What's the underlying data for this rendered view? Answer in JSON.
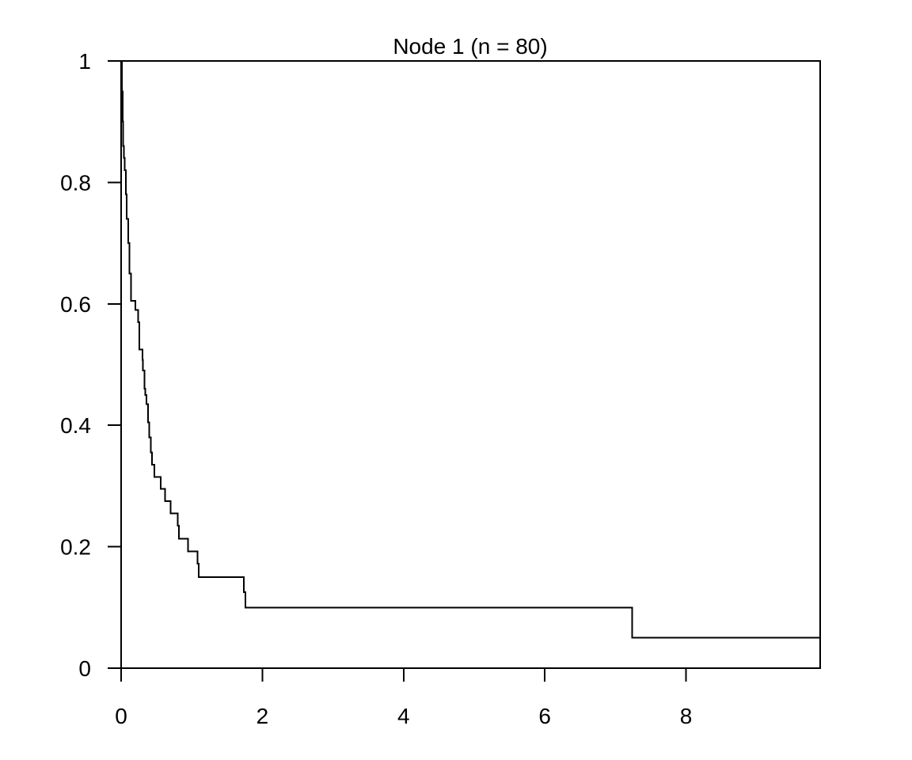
{
  "chart_data": {
    "type": "line",
    "step": true,
    "title": "Node 1 (n = 80)",
    "xlabel": "",
    "ylabel": "",
    "xlim": [
      0,
      9.9
    ],
    "ylim": [
      0,
      1
    ],
    "x_ticks": [
      0,
      2,
      4,
      6,
      8
    ],
    "x_tick_labels": [
      "0",
      "2",
      "4",
      "6",
      "8"
    ],
    "y_ticks": [
      0,
      0.2,
      0.4,
      0.6,
      0.8,
      1
    ],
    "y_tick_labels": [
      "0",
      "0.2",
      "0.4",
      "0.6",
      "0.8",
      "1"
    ],
    "grid": false,
    "series": [
      {
        "x": [
          0,
          0.01,
          0.02,
          0.03,
          0.04,
          0.05,
          0.07,
          0.08,
          0.1,
          0.12,
          0.14,
          0.16,
          0.2,
          0.24,
          0.26,
          0.28,
          0.3,
          0.31,
          0.33,
          0.34,
          0.36,
          0.38,
          0.4,
          0.42,
          0.44,
          0.47,
          0.56,
          0.62,
          0.7,
          0.8,
          0.82,
          0.95,
          1.08,
          1.1,
          1.74,
          1.76,
          7.24
        ],
        "y": [
          1.0,
          0.95,
          0.9,
          0.86,
          0.84,
          0.82,
          0.78,
          0.74,
          0.7,
          0.65,
          0.605,
          0.605,
          0.59,
          0.57,
          0.525,
          0.525,
          0.508,
          0.49,
          0.46,
          0.45,
          0.435,
          0.405,
          0.38,
          0.355,
          0.335,
          0.315,
          0.295,
          0.275,
          0.255,
          0.235,
          0.213,
          0.192,
          0.172,
          0.15,
          0.125,
          0.1,
          0.05
        ]
      }
    ]
  }
}
